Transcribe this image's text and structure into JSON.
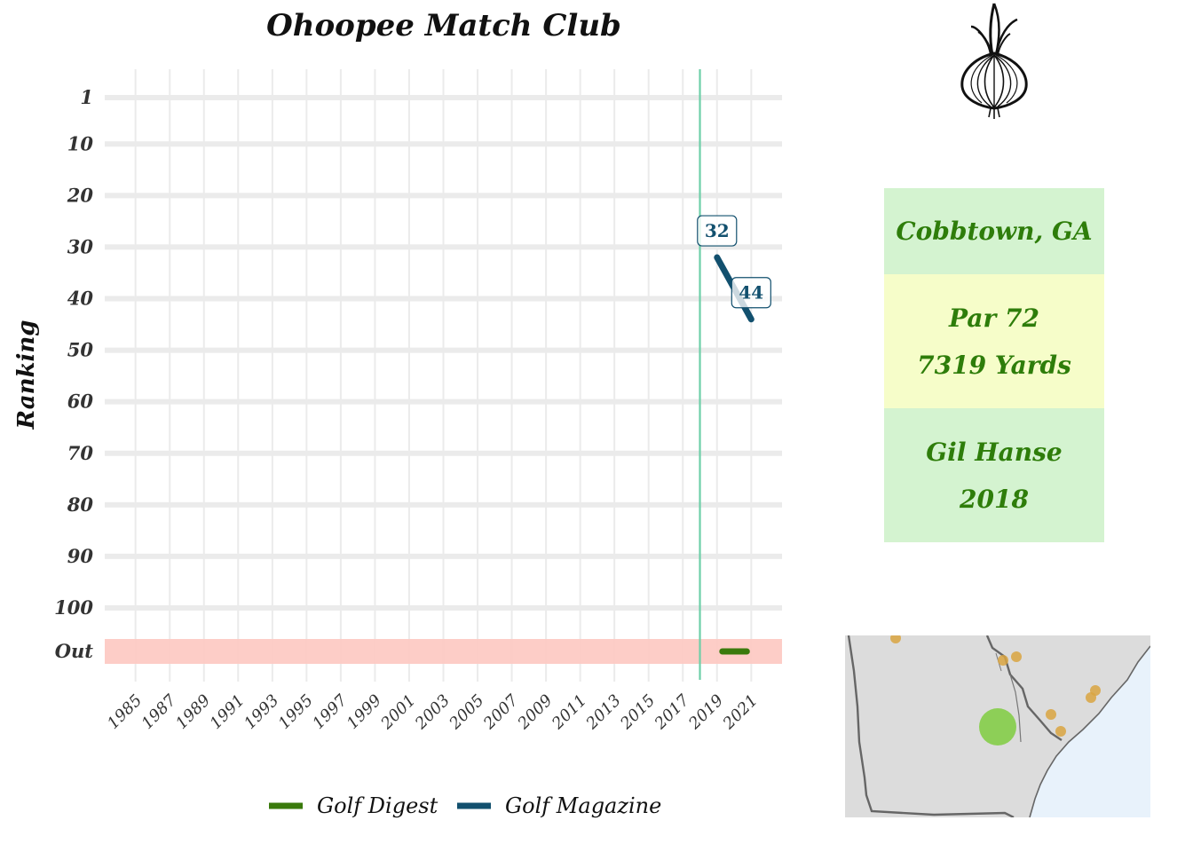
{
  "chart_data": {
    "type": "line",
    "title": "Ohoopee Match Club",
    "ylabel": "Ranking",
    "xlabel": "",
    "x_ticks": [
      1985,
      1987,
      1989,
      1991,
      1993,
      1995,
      1997,
      1999,
      2001,
      2003,
      2005,
      2007,
      2009,
      2011,
      2013,
      2015,
      2017,
      2019,
      2021
    ],
    "xlim": [
      1983.2,
      2022.8
    ],
    "y_ticks": [
      "1",
      "10",
      "20",
      "30",
      "40",
      "50",
      "60",
      "70",
      "80",
      "90",
      "100",
      "Out"
    ],
    "y_values": [
      1,
      10,
      20,
      30,
      40,
      50,
      60,
      70,
      80,
      90,
      100,
      110
    ],
    "reversed_y": true,
    "out_band": {
      "label": "Out",
      "color": "#fdcac4"
    },
    "vertical_line": {
      "x": 2018,
      "color": "#6ecfa8"
    },
    "grid": true,
    "legend_position": "bottom",
    "series": [
      {
        "name": "Golf Digest",
        "color": "#3a7a0c",
        "x": [
          2019,
          2021
        ],
        "y": [
          "Out",
          "Out"
        ],
        "labels": []
      },
      {
        "name": "Golf Magazine",
        "color": "#12506e",
        "x": [
          2019,
          2021
        ],
        "y": [
          32,
          44
        ],
        "labels": [
          "32",
          "44"
        ]
      }
    ]
  },
  "info": {
    "location": "Cobbtown, GA",
    "par": "Par 72",
    "yards": "7319 Yards",
    "architect": "Gil Hanse",
    "year": "2018"
  },
  "colors": {
    "panel_green": "#d4f3d0",
    "panel_yellow": "#f6fdc9",
    "text_green": "#2e7d0a",
    "map_land": "#dcdcdc",
    "map_water": "#e8f2fb",
    "map_point_other": "#d9a441",
    "map_point_course": "#7fcc3f"
  },
  "icons": {
    "logo": "onion-icon",
    "map": "region-map"
  }
}
